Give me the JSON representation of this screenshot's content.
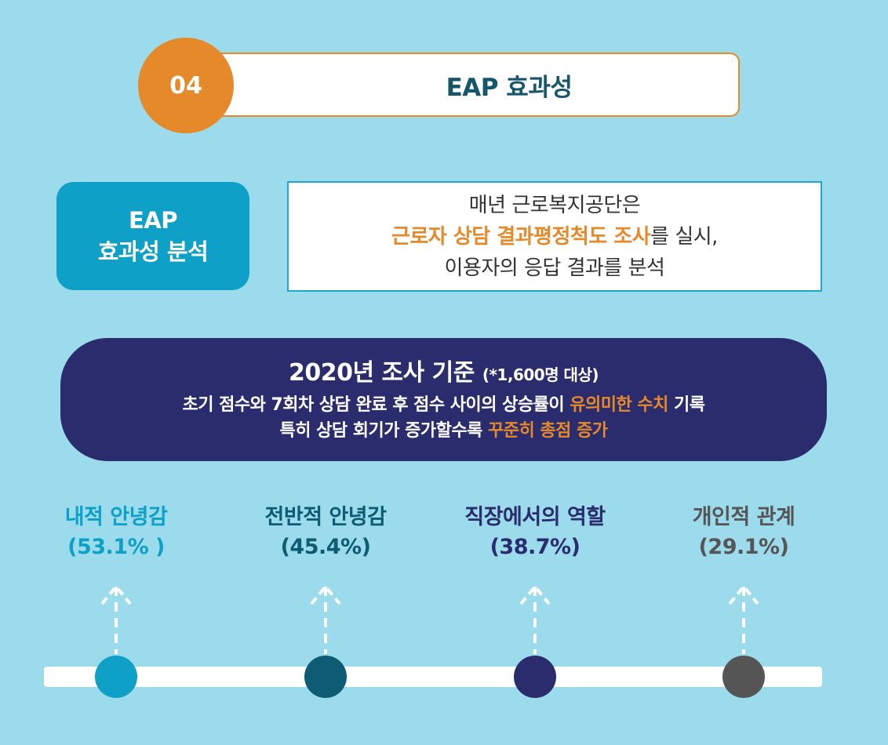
{
  "header": {
    "number": "04",
    "title": "EAP 효과성",
    "accent_color": "#e5892a",
    "title_color": "#15566b"
  },
  "analysis_label": {
    "line1": "EAP",
    "line2": "효과성 분석",
    "bg_color": "#0fa0c7"
  },
  "description": {
    "line1": "매년 근로복지공단은",
    "line2_highlight": "근로자 상담 결과평정척도 조사",
    "line2_rest": "를 실시,",
    "line3": "이용자의 응답 결과를 분석"
  },
  "survey": {
    "title": "2020년 조사 기준",
    "note": "(*1,600명 대상)",
    "line1_text": "초기 점수와 7회차 상담 완료 후 점수 사이의 상승률이 ",
    "line1_highlight": "유의미한 수치",
    "line1_end": " 기록",
    "line2_text": "특히 상담 회기가 증가할수록 ",
    "line2_highlight": "꾸준히 총점 증가",
    "bg_color": "#2a2c6e"
  },
  "items": [
    {
      "label": "내적 안녕감",
      "value": "(53.1% )",
      "color": "#0fa0c7"
    },
    {
      "label": "전반적 안녕감",
      "value": "(45.4%)",
      "color": "#0d5c73"
    },
    {
      "label": "직장에서의 역할",
      "value": "(38.7%)",
      "color": "#2a2c6e"
    },
    {
      "label": "개인적 관계",
      "value": "(29.1%)",
      "color": "#555555"
    }
  ],
  "icons": {
    "arrow": "dashed-up-arrow-icon"
  }
}
